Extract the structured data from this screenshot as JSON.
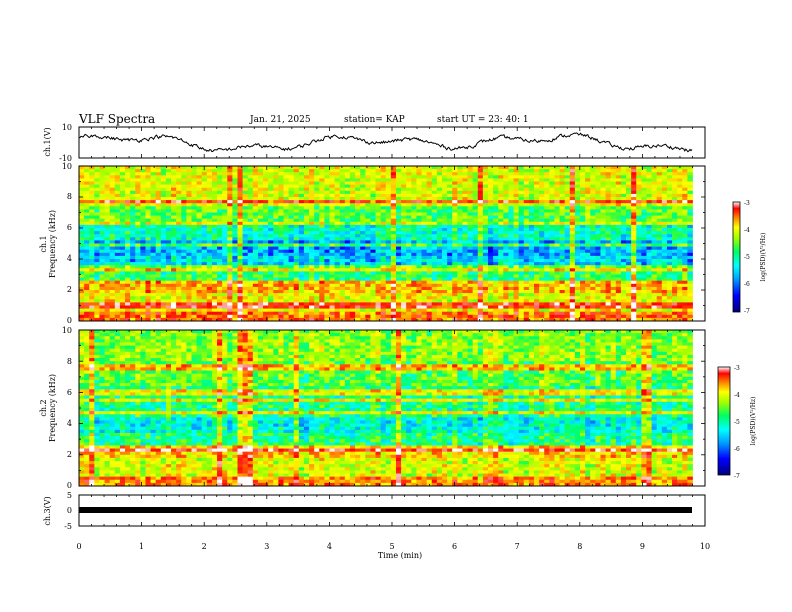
{
  "header": {
    "title": "VLF Spectra",
    "date": "Jan. 21, 2025",
    "station": "station= KAP",
    "start_ut": "start  UT =  23: 40: 1"
  },
  "colors": {
    "trace": "#000000",
    "colormap": [
      "#00007f",
      "#0000ff",
      "#00a0ff",
      "#00ffff",
      "#00ff60",
      "#a0ff00",
      "#ffff00",
      "#ff8000",
      "#ff0000",
      "#ffffff"
    ]
  },
  "chart_data": [
    {
      "type": "line",
      "id": "ch1",
      "ylabel": "ch.1(V)",
      "ylim": [
        -10,
        10
      ],
      "y_tick_labels": [
        "10",
        "-10"
      ],
      "xlim": [
        0,
        10
      ],
      "note": "waveform amplitude envelope, roughly -8 to +8 V"
    },
    {
      "type": "heatmap",
      "id": "ch1-spectrogram",
      "ylabel": "ch.1\nFrequency (kHz)",
      "ylim": [
        0,
        10
      ],
      "y_tick_labels": [
        "0",
        "2",
        "4",
        "6",
        "8",
        "10"
      ],
      "xlim": [
        0,
        9.8
      ],
      "colorbar": {
        "label": "log(PSD)(V²/Hz)",
        "range": [
          -7,
          -3
        ],
        "tick_labels": [
          "-3",
          "-4",
          "-5",
          "-6",
          "-7"
        ]
      },
      "bands_khz": [
        {
          "low": 0.0,
          "high": 0.6,
          "level": -3.8
        },
        {
          "low": 0.6,
          "high": 1.8,
          "level": -4.4
        },
        {
          "low": 1.8,
          "high": 2.6,
          "level": -4.1
        },
        {
          "low": 2.6,
          "high": 3.4,
          "level": -5.2
        },
        {
          "low": 3.4,
          "high": 4.2,
          "level": -5.8
        },
        {
          "low": 4.2,
          "high": 5.2,
          "level": -6.0
        },
        {
          "low": 5.2,
          "high": 6.4,
          "level": -5.5
        },
        {
          "low": 6.4,
          "high": 7.4,
          "level": -5.0
        },
        {
          "low": 7.4,
          "high": 10.0,
          "level": -4.5
        }
      ]
    },
    {
      "type": "heatmap",
      "id": "ch2-spectrogram",
      "ylabel": "ch.2\nFrequency (kHz)",
      "ylim": [
        0,
        10
      ],
      "y_tick_labels": [
        "0",
        "2",
        "4",
        "6",
        "8",
        "10"
      ],
      "xlim": [
        0,
        9.8
      ],
      "colorbar": {
        "label": "log(PSD)(V²/Hz)",
        "range": [
          -7,
          -3
        ],
        "tick_labels": [
          "-3",
          "-4",
          "-5",
          "-6",
          "-7"
        ]
      },
      "bands_khz": [
        {
          "low": 0.0,
          "high": 0.6,
          "level": -3.9
        },
        {
          "low": 0.6,
          "high": 1.8,
          "level": -4.5
        },
        {
          "low": 1.8,
          "high": 2.6,
          "level": -4.2
        },
        {
          "low": 2.6,
          "high": 3.4,
          "level": -5.3
        },
        {
          "low": 3.4,
          "high": 4.4,
          "level": -5.6
        },
        {
          "low": 4.4,
          "high": 6.4,
          "level": -5.3
        },
        {
          "low": 6.4,
          "high": 8.0,
          "level": -5.0
        },
        {
          "low": 8.0,
          "high": 10.0,
          "level": -4.8
        }
      ]
    },
    {
      "type": "line",
      "id": "ch3",
      "ylabel": "ch.3(V)",
      "ylim": [
        -5,
        5
      ],
      "y_tick_labels": [
        "5",
        "0",
        "-5"
      ],
      "xlim": [
        0,
        10
      ],
      "note": "near-constant thick trace slightly below 0 V"
    }
  ],
  "xaxis": {
    "label": "Time (min)",
    "tick_labels": [
      "0",
      "1",
      "2",
      "3",
      "4",
      "5",
      "6",
      "7",
      "8",
      "9",
      "10"
    ],
    "range": [
      0,
      10
    ]
  }
}
